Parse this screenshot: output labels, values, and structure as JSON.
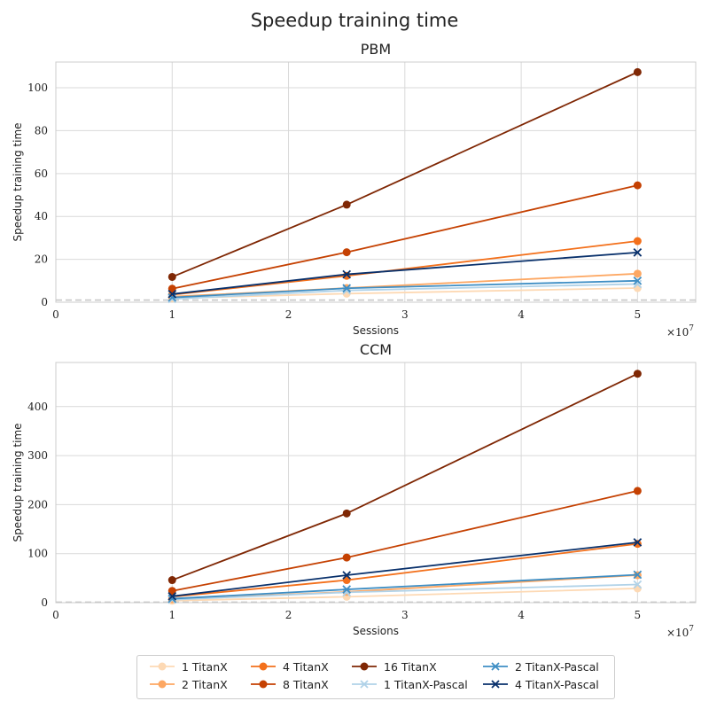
{
  "figure": {
    "title": "Speedup training time",
    "x_exponent_label": "×10",
    "x_exponent": "7"
  },
  "chart_data": [
    {
      "type": "line",
      "title": "PBM",
      "xlabel": "Sessions",
      "ylabel": "Speedup training time",
      "xlim": [
        0,
        5.5
      ],
      "ylim": [
        0,
        112
      ],
      "x_ticks": [
        0,
        1,
        2,
        3,
        4,
        5
      ],
      "y_ticks": [
        0,
        20,
        40,
        60,
        80,
        100
      ],
      "x_scale_note": "×10^7",
      "x": [
        1,
        2.5,
        5
      ],
      "reference_line": 1,
      "grid": true,
      "series": [
        {
          "name": "1 TitanX",
          "values": [
            1.8,
            4.0,
            6.6
          ],
          "color": "#fdd9b4",
          "marker": "o"
        },
        {
          "name": "2 TitanX",
          "values": [
            2.6,
            6.6,
            13.3
          ],
          "color": "#fda762",
          "marker": "o"
        },
        {
          "name": "4 TitanX",
          "values": [
            3.5,
            12.3,
            28.5
          ],
          "color": "#f3701b",
          "marker": "o"
        },
        {
          "name": "8 TitanX",
          "values": [
            6.3,
            23.3,
            54.5
          ],
          "color": "#c54102",
          "marker": "o"
        },
        {
          "name": "16 TitanX",
          "values": [
            11.8,
            45.5,
            107.3
          ],
          "color": "#7f2704",
          "marker": "o"
        },
        {
          "name": "1 TitanX-Pascal",
          "values": [
            1.5,
            5.5,
            8.5
          ],
          "color": "#b0d2e8",
          "marker": "x"
        },
        {
          "name": "2 TitanX-Pascal",
          "values": [
            2.2,
            6.5,
            10.0
          ],
          "color": "#3e8ec4",
          "marker": "x"
        },
        {
          "name": "4 TitanX-Pascal",
          "values": [
            3.8,
            13.0,
            23.2
          ],
          "color": "#08306b",
          "marker": "x"
        }
      ]
    },
    {
      "type": "line",
      "title": "CCM",
      "xlabel": "Sessions",
      "ylabel": "Speedup training time",
      "xlim": [
        0,
        5.5
      ],
      "ylim": [
        0,
        490
      ],
      "x_ticks": [
        0,
        1,
        2,
        3,
        4,
        5
      ],
      "y_ticks": [
        0,
        100,
        200,
        300,
        400
      ],
      "x_scale_note": "×10^7",
      "x": [
        1,
        2.5,
        5
      ],
      "reference_line": 1,
      "grid": true,
      "series": [
        {
          "name": "1 TitanX",
          "values": [
            4,
            12,
            29
          ],
          "color": "#fdd9b4",
          "marker": "o"
        },
        {
          "name": "2 TitanX",
          "values": [
            7,
            22,
            56
          ],
          "color": "#fda762",
          "marker": "o"
        },
        {
          "name": "4 TitanX",
          "values": [
            12,
            46,
            120
          ],
          "color": "#f3701b",
          "marker": "o"
        },
        {
          "name": "8 TitanX",
          "values": [
            24,
            92,
            228
          ],
          "color": "#c54102",
          "marker": "o"
        },
        {
          "name": "16 TitanX",
          "values": [
            46,
            182,
            467
          ],
          "color": "#7f2704",
          "marker": "o"
        },
        {
          "name": "1 TitanX-Pascal",
          "values": [
            6,
            21,
            37
          ],
          "color": "#b0d2e8",
          "marker": "x"
        },
        {
          "name": "2 TitanX-Pascal",
          "values": [
            8,
            27,
            57
          ],
          "color": "#3e8ec4",
          "marker": "x"
        },
        {
          "name": "4 TitanX-Pascal",
          "values": [
            13,
            56,
            123
          ],
          "color": "#08306b",
          "marker": "x"
        }
      ]
    }
  ],
  "legend": {
    "placement": "bottom-center",
    "items": [
      "1 TitanX",
      "2 TitanX",
      "4 TitanX",
      "8 TitanX",
      "16 TitanX",
      "1 TitanX-Pascal",
      "2 TitanX-Pascal",
      "4 TitanX-Pascal"
    ]
  }
}
